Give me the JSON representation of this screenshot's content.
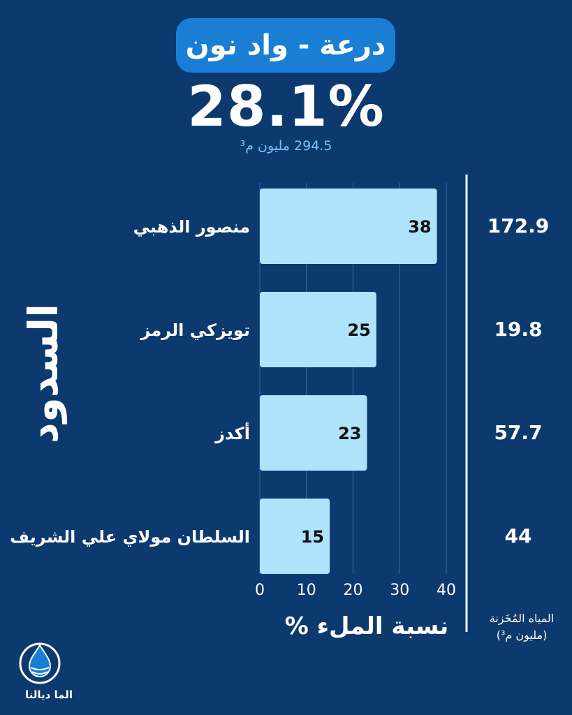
{
  "header": {
    "title": "درعة - واد نون",
    "headline": "28.1%",
    "subline": "294.5 مليون م³"
  },
  "chart_data": {
    "type": "bar",
    "orientation": "horizontal",
    "categories": [
      "منصور الذهبي",
      "تويزكي الرمز",
      "أكدز",
      "السلطان مولاي علي الشريف"
    ],
    "values": [
      38,
      25,
      23,
      15
    ],
    "stored": [
      "172.9",
      "19.8",
      "57.7",
      "44"
    ],
    "xlim": [
      0,
      40
    ],
    "xticks": [
      0,
      10,
      20,
      30,
      40
    ],
    "xlabel": "نسبة الملء %",
    "ylabel": "السدود",
    "right_header_line1": "المياه المُخَزنة",
    "right_header_line2": "(مليون م³)",
    "grid": true,
    "bar_color": "#aee3fb"
  },
  "logo": {
    "text": "الما ديالنا"
  }
}
